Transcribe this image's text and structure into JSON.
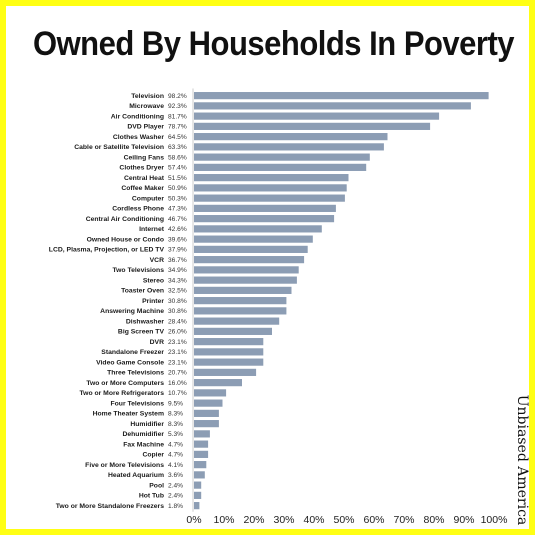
{
  "chart_data": {
    "type": "bar",
    "orientation": "horizontal",
    "title": "Owned By Households In Poverty",
    "categories": [
      "Television",
      "Microwave",
      "Air Conditioning",
      "DVD Player",
      "Clothes Washer",
      "Cable or Satellite Television",
      "Ceiling Fans",
      "Clothes Dryer",
      "Central Heat",
      "Coffee Maker",
      "Computer",
      "Cordless Phone",
      "Central Air Conditioning",
      "Internet",
      "Owned House or Condo",
      "LCD, Plasma, Projection, or LED TV",
      "VCR",
      "Two Televisions",
      "Stereo",
      "Toaster Oven",
      "Printer",
      "Answering Machine",
      "Dishwasher",
      "Big Screen TV",
      "DVR",
      "Standalone Freezer",
      "Video Game Console",
      "Three Televisions",
      "Two or More Computers",
      "Two or More Refrigerators",
      "Four Televisions",
      "Home Theater System",
      "Humidifier",
      "Dehumidifier",
      "Fax Machine",
      "Copier",
      "Five or More Televisions",
      "Heated Aquarium",
      "Pool",
      "Hot Tub",
      "Two or More Standalone Freezers"
    ],
    "values": [
      98.2,
      92.3,
      81.7,
      78.7,
      64.5,
      63.3,
      58.6,
      57.4,
      51.5,
      50.9,
      50.3,
      47.3,
      46.7,
      42.6,
      39.6,
      37.9,
      36.7,
      34.9,
      34.3,
      32.5,
      30.8,
      30.8,
      28.4,
      26.0,
      23.1,
      23.1,
      23.1,
      20.7,
      16.0,
      10.7,
      9.5,
      8.3,
      8.3,
      5.3,
      4.7,
      4.7,
      4.1,
      3.6,
      2.4,
      2.4,
      1.8
    ],
    "value_labels": [
      "98.2%",
      "92.3%",
      "81.7%",
      "78.7%",
      "64.5%",
      "63.3%",
      "58.6%",
      "57.4%",
      "51.5%",
      "50.9%",
      "50.3%",
      "47.3%",
      "46.7%",
      "42.6%",
      "39.6%",
      "37.9%",
      "36.7%",
      "34.9%",
      "34.3%",
      "32.5%",
      "30.8%",
      "30.8%",
      "28.4%",
      "26.0%",
      "23.1%",
      "23.1%",
      "23.1%",
      "20.7%",
      "16.0%",
      "10.7%",
      "9.5%",
      "8.3%",
      "8.3%",
      "5.3%",
      "4.7%",
      "4.7%",
      "4.1%",
      "3.6%",
      "2.4%",
      "2.4%",
      "1.8%"
    ],
    "xlim": [
      0,
      100
    ],
    "x_ticks": [
      0,
      10,
      20,
      30,
      40,
      50,
      60,
      70,
      80,
      90,
      100
    ],
    "x_tick_labels": [
      "0%",
      "10%",
      "20%",
      "30%",
      "40%",
      "50%",
      "60%",
      "70%",
      "80%",
      "90%",
      "100%"
    ],
    "grid": false,
    "bar_color": "#8c9db4"
  },
  "watermark": "Unbiased America",
  "colors": {
    "border": "#ffff14",
    "background": "#ffffff",
    "text": "#111111"
  }
}
